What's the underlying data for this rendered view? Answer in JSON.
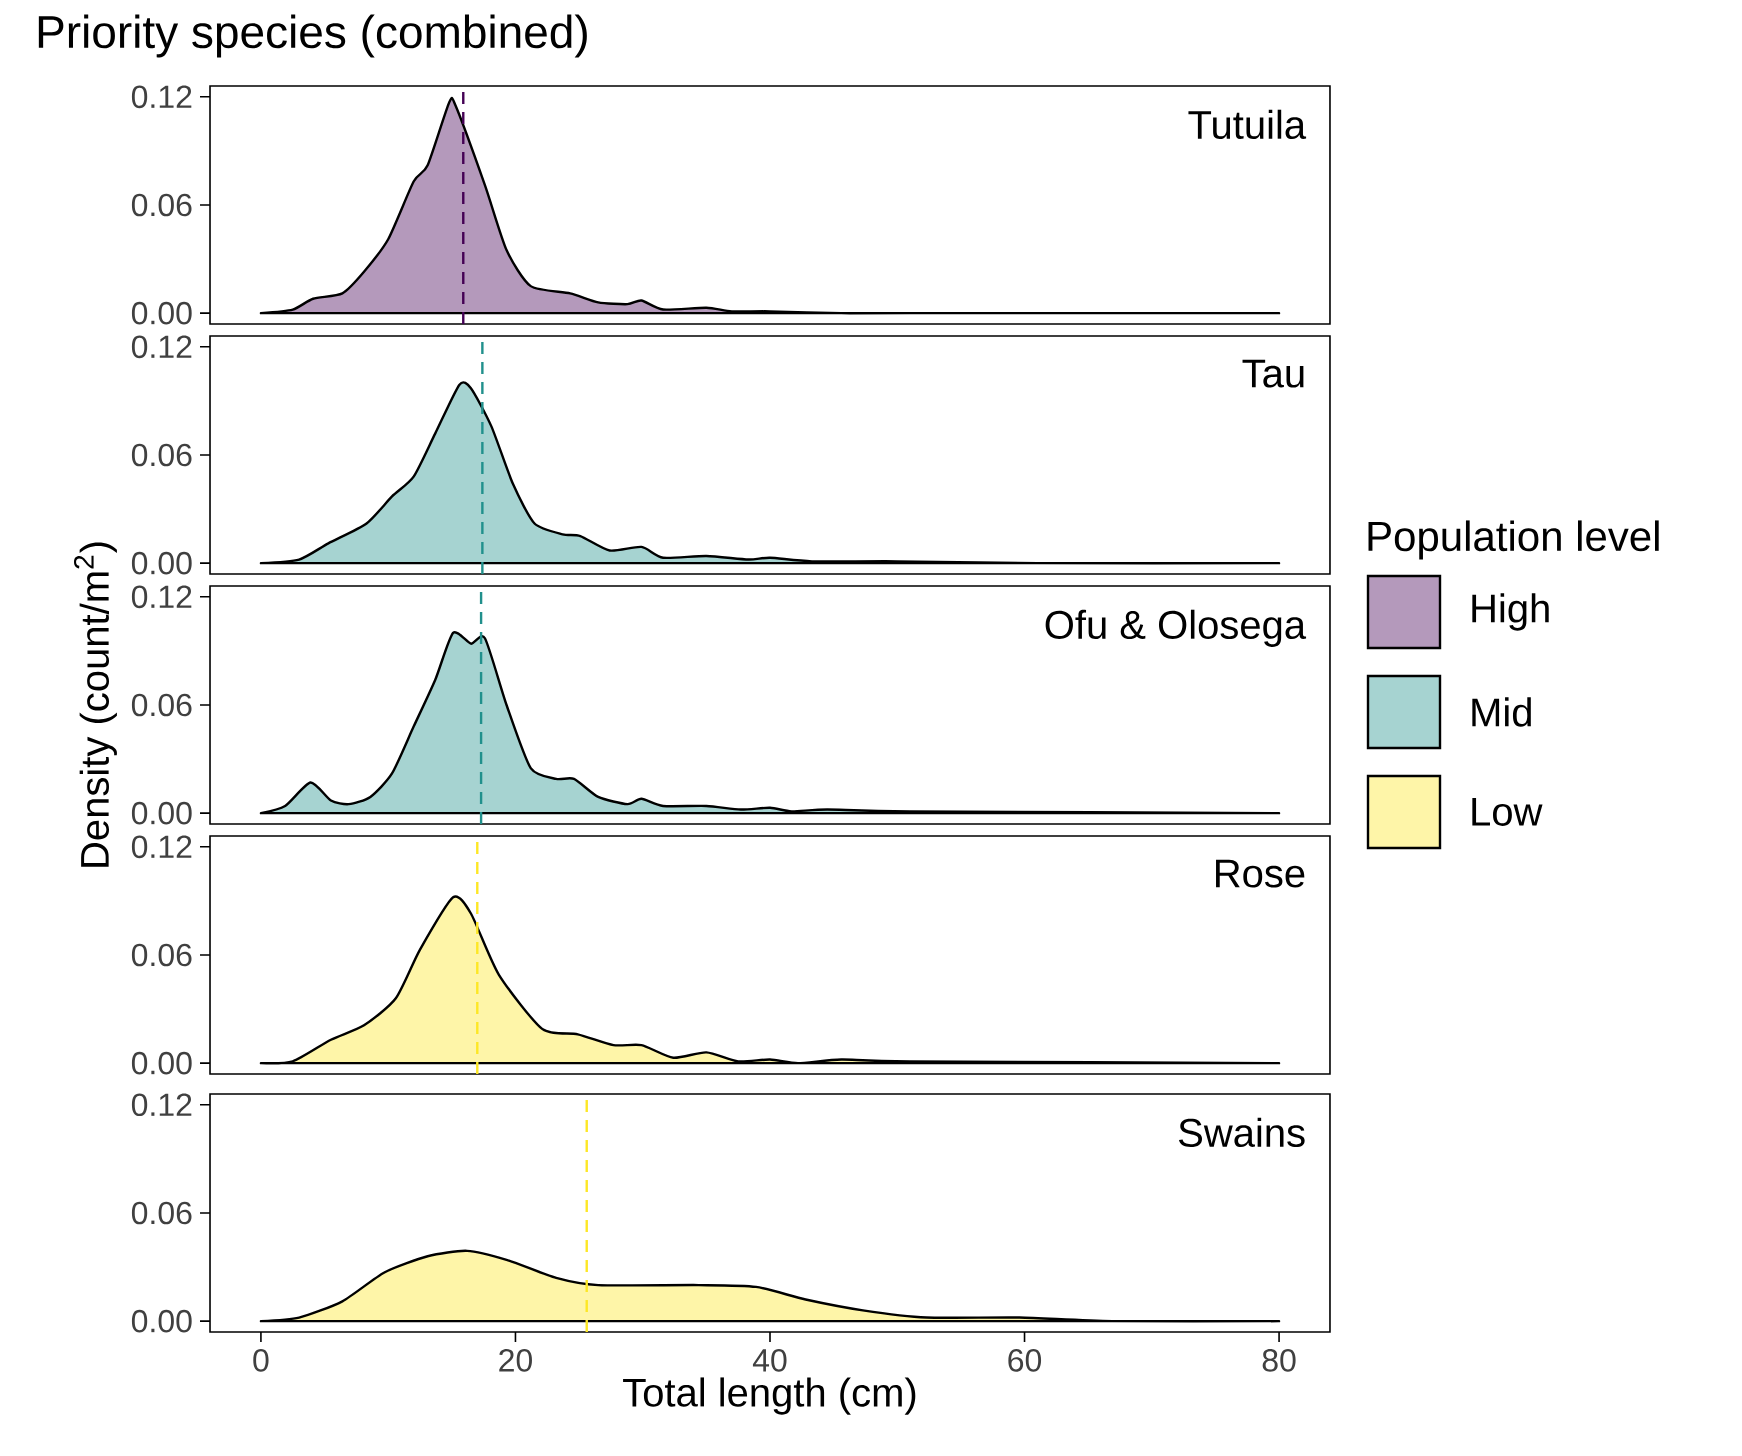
{
  "chart_data": [
    {
      "type": "area",
      "title": "Priority species (combined)",
      "annotations": [
        "Tutuila"
      ],
      "xlim": [
        -4,
        84
      ],
      "ylim": [
        -0.006,
        0.126
      ],
      "yticks": [
        {
          "value": 0,
          "label": "0.00"
        },
        {
          "value": 0.06,
          "label": "0.06"
        },
        {
          "value": 0.12,
          "label": "0.12"
        }
      ],
      "tick_labels": "y",
      "x": [
        0,
        2.5,
        4.1,
        6.4,
        8.1,
        10,
        12,
        13.1,
        14.8,
        15.3,
        17.6,
        19.3,
        21.2,
        24.3,
        26.5,
        28.8,
        29.9,
        31.6,
        35,
        37,
        40,
        45.6,
        51,
        80
      ],
      "series": [
        {
          "name": "High",
          "color": "#b499bb",
          "values": [
            0,
            0.002,
            0.008,
            0.011,
            0.023,
            0.041,
            0.073,
            0.082,
            0.117,
            0.115,
            0.071,
            0.035,
            0.015,
            0.011,
            0.006,
            0.005,
            0.007,
            0.002,
            0.003,
            0.001,
            0.001,
            0,
            0,
            0
          ]
        }
      ],
      "ref_lines": [
        {
          "axis": "x",
          "value": 15.9,
          "color": "#440154",
          "line_style": "dashed"
        }
      ]
    },
    {
      "type": "area",
      "annotations": [
        "Tau"
      ],
      "xlim": [
        -4,
        84
      ],
      "ylim": [
        -0.006,
        0.126
      ],
      "yticks": [
        {
          "value": 0,
          "label": "0.00"
        },
        {
          "value": 0.06,
          "label": "0.06"
        },
        {
          "value": 0.12,
          "label": "0.12"
        }
      ],
      "tick_labels": "y",
      "x": [
        0,
        3,
        5.3,
        8.3,
        10.3,
        12,
        13.7,
        15.6,
        16.5,
        18.1,
        19.8,
        21.5,
        23.7,
        25.1,
        27.4,
        29.9,
        31.6,
        35,
        38.3,
        40,
        43.3,
        50,
        61,
        80
      ],
      "series": [
        {
          "color": "#a6d3d1",
          "values": [
            0,
            0.002,
            0.011,
            0.022,
            0.037,
            0.048,
            0.072,
            0.099,
            0.097,
            0.076,
            0.044,
            0.022,
            0.016,
            0.015,
            0.007,
            0.009,
            0.003,
            0.004,
            0.002,
            0.003,
            0.001,
            0.001,
            0,
            0
          ]
        }
      ],
      "ref_lines": [
        {
          "axis": "x",
          "value": 17.4,
          "color": "#21908c",
          "line_style": "dashed"
        }
      ]
    },
    {
      "type": "area",
      "annotations": [
        "Ofu & Olosega"
      ],
      "ylabel": "Density (count/m$^{2}$)",
      "legend": "right",
      "legend_title": "Population level",
      "xlim": [
        -4,
        84
      ],
      "ylim": [
        -0.006,
        0.126
      ],
      "yticks": [
        {
          "value": 0,
          "label": "0.00"
        },
        {
          "value": 0.06,
          "label": "0.06"
        },
        {
          "value": 0.12,
          "label": "0.12"
        }
      ],
      "tick_labels": "y",
      "x": [
        0,
        1.9,
        3.9,
        5.5,
        6.9,
        8.6,
        10.3,
        12,
        13.7,
        15.1,
        16.5,
        17.6,
        19.3,
        21.2,
        23.2,
        24.6,
        26.5,
        28.8,
        29.9,
        31.6,
        35,
        37.7,
        40,
        41.7,
        44.5,
        51,
        80
      ],
      "series": [
        {
          "name": "Mid",
          "color": "#a6d3d1",
          "values": [
            0,
            0.004,
            0.017,
            0.007,
            0.005,
            0.009,
            0.022,
            0.048,
            0.074,
            0.1,
            0.094,
            0.097,
            0.06,
            0.025,
            0.019,
            0.019,
            0.009,
            0.005,
            0.008,
            0.004,
            0.004,
            0.002,
            0.003,
            0.001,
            0.002,
            0.001,
            0
          ]
        }
      ],
      "ref_lines": [
        {
          "axis": "x",
          "value": 17.3,
          "color": "#21908c",
          "line_style": "dashed"
        }
      ]
    },
    {
      "type": "area",
      "annotations": [
        "Rose"
      ],
      "xlim": [
        -4,
        84
      ],
      "ylim": [
        -0.006,
        0.126
      ],
      "yticks": [
        {
          "value": 0,
          "label": "0.00"
        },
        {
          "value": 0.06,
          "label": "0.06"
        },
        {
          "value": 0.12,
          "label": "0.12"
        }
      ],
      "tick_labels": "y",
      "x": [
        0,
        2.5,
        5.5,
        8.1,
        10.6,
        12.5,
        15.1,
        16.5,
        18.7,
        22.1,
        24.9,
        27.7,
        29.9,
        32.4,
        35,
        37.5,
        40,
        42.2,
        45.6,
        51,
        80
      ],
      "series": [
        {
          "name": "Low",
          "color": "#fef5a8",
          "values": [
            0,
            0.001,
            0.013,
            0.021,
            0.036,
            0.063,
            0.092,
            0.083,
            0.049,
            0.019,
            0.016,
            0.01,
            0.01,
            0.003,
            0.006,
            0.001,
            0.002,
            0,
            0.002,
            0.001,
            0
          ]
        }
      ],
      "ref_lines": [
        {
          "axis": "x",
          "value": 17.0,
          "color": "#fde725",
          "line_style": "dashed"
        }
      ]
    },
    {
      "type": "area",
      "annotations": [
        "Swains"
      ],
      "xlabel": "Total length (cm)",
      "xlim": [
        -4,
        84
      ],
      "ylim": [
        -0.006,
        0.126
      ],
      "xticks": [
        0,
        20,
        40,
        60,
        80
      ],
      "yticks": [
        {
          "value": 0,
          "label": "0.00"
        },
        {
          "value": 0.06,
          "label": "0.06"
        },
        {
          "value": 0.12,
          "label": "0.12"
        }
      ],
      "x": [
        0,
        3,
        6.4,
        9.7,
        13.1,
        16.2,
        19.3,
        23.2,
        26.5,
        34.4,
        38.9,
        42.8,
        47.3,
        52.3,
        59.6,
        66.9,
        80
      ],
      "series": [
        {
          "color": "#fef5a8",
          "values": [
            0,
            0.002,
            0.011,
            0.027,
            0.036,
            0.039,
            0.034,
            0.024,
            0.02,
            0.02,
            0.019,
            0.012,
            0.006,
            0.002,
            0.002,
            0,
            0
          ]
        }
      ],
      "ref_lines": [
        {
          "axis": "x",
          "value": 25.6,
          "color": "#fde725",
          "line_style": "dashed"
        }
      ]
    }
  ]
}
